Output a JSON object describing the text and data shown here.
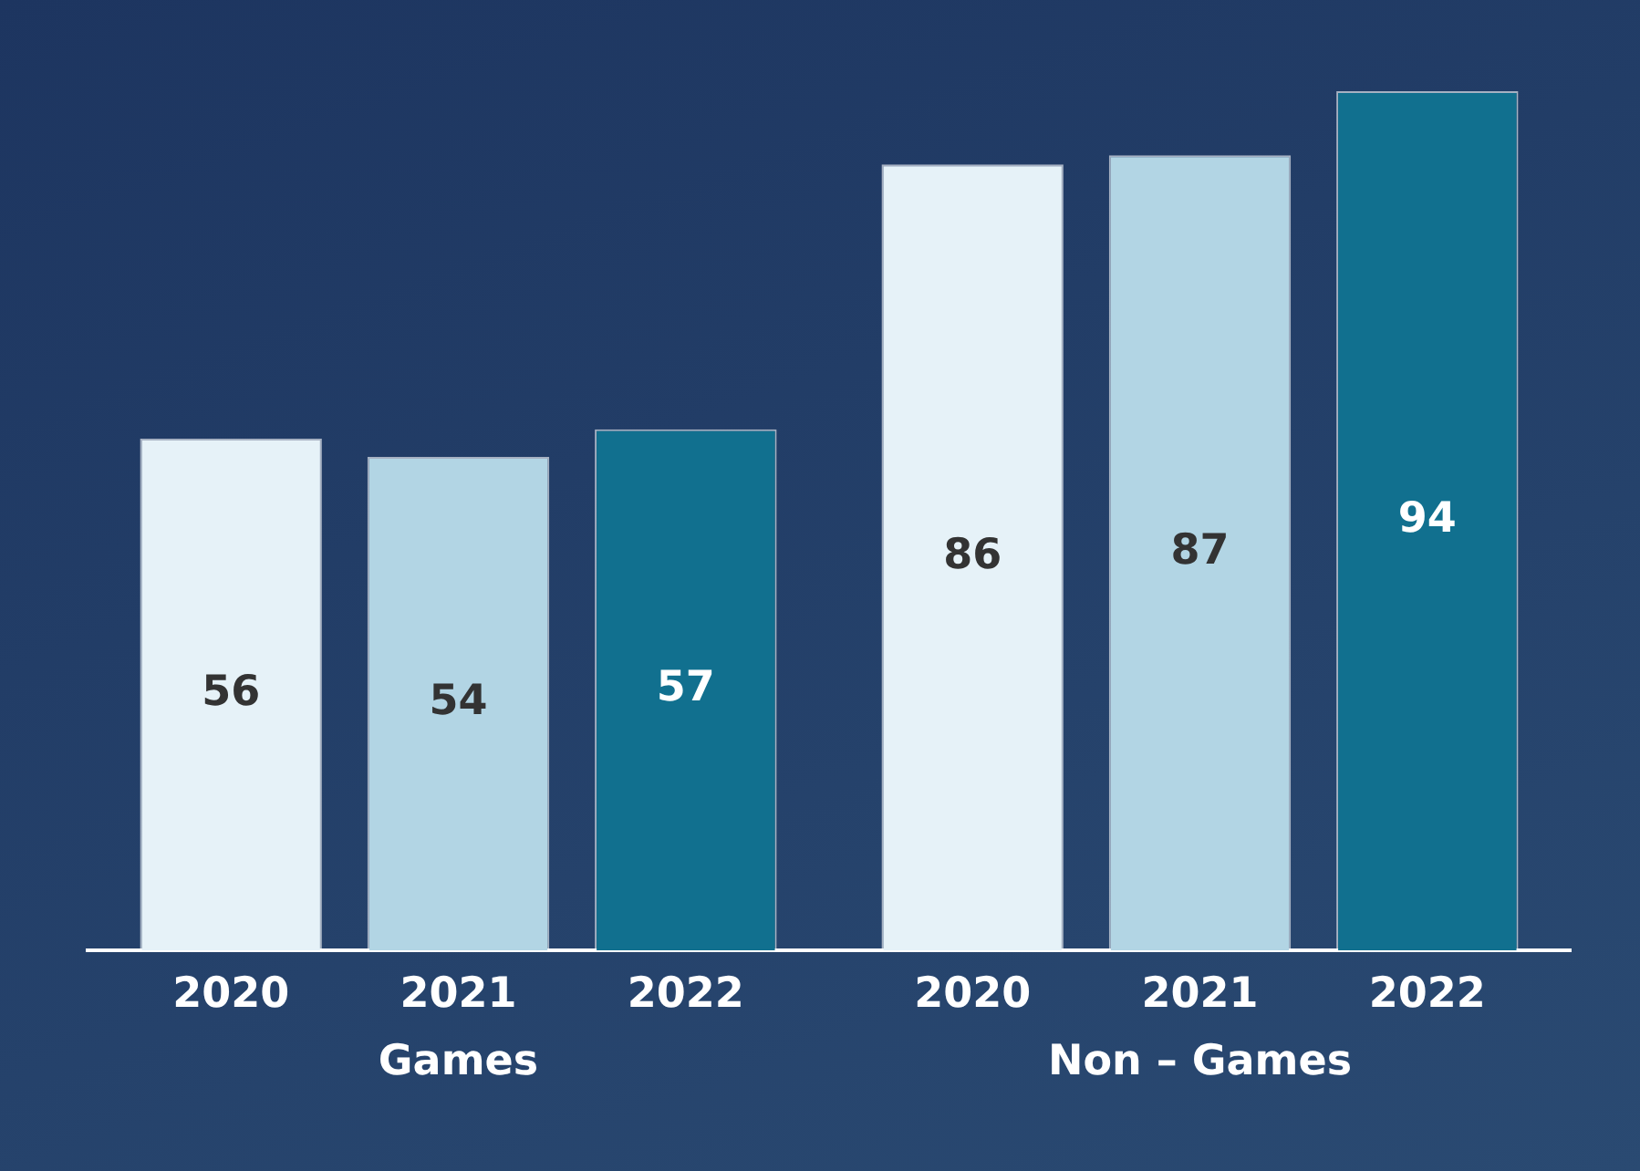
{
  "chart_data": {
    "type": "bar",
    "categories": [
      "Games",
      "Non – Games"
    ],
    "series": [
      {
        "name": "2020",
        "color": "#e6f2f8",
        "values": [
          56,
          86
        ]
      },
      {
        "name": "2021",
        "color": "#b2d5e4",
        "values": [
          54,
          87
        ]
      },
      {
        "name": "2022",
        "color": "#11708f",
        "values": [
          57,
          94
        ]
      }
    ],
    "data_labels": true,
    "legend": false
  }
}
